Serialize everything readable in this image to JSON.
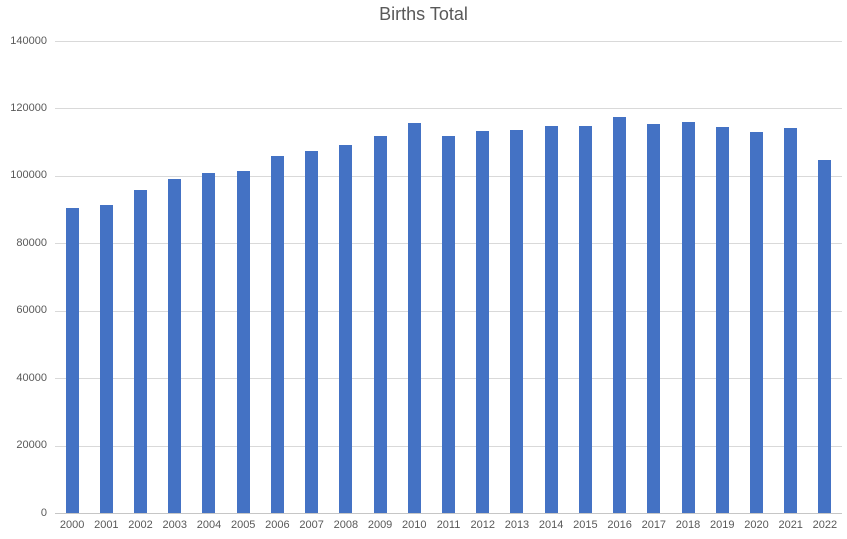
{
  "title": "Births Total",
  "colors": {
    "bar": "#4472C4",
    "gridline": "#D9D9D9",
    "axis_line": "#C6C6C6",
    "text": "#595959",
    "background": "#FFFFFF"
  },
  "chart_data": {
    "type": "bar",
    "title": "Births Total",
    "categories": [
      "2000",
      "2001",
      "2002",
      "2003",
      "2004",
      "2005",
      "2006",
      "2007",
      "2008",
      "2009",
      "2010",
      "2011",
      "2012",
      "2013",
      "2014",
      "2015",
      "2016",
      "2017",
      "2018",
      "2019",
      "2020",
      "2021",
      "2022"
    ],
    "values": [
      90441,
      91466,
      95815,
      99157,
      100928,
      101346,
      105913,
      107421,
      109301,
      111801,
      115641,
      111770,
      113177,
      113593,
      114907,
      114870,
      117425,
      115416,
      115832,
      114523,
      113077,
      114263,
      104734
    ],
    "xlabel": "",
    "ylabel": "",
    "ylim": [
      0,
      140000
    ],
    "ytick_interval": 20000,
    "ytick_labels": [
      "0",
      "20000",
      "40000",
      "60000",
      "80000",
      "100000",
      "120000",
      "140000"
    ],
    "grid": true,
    "legend": false
  }
}
